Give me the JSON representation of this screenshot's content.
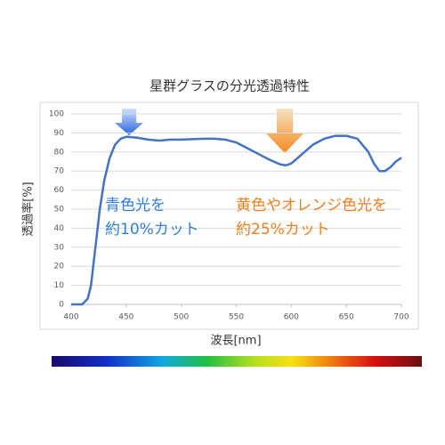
{
  "chart_data": {
    "type": "line",
    "title": "星群グラスの分光透過特性",
    "x_label": "波長[nm]",
    "y_label": "透過率[%]",
    "x": [
      400,
      410,
      415,
      418,
      420,
      423,
      426,
      430,
      435,
      440,
      445,
      450,
      460,
      470,
      480,
      490,
      500,
      520,
      530,
      540,
      550,
      560,
      570,
      580,
      590,
      595,
      600,
      610,
      620,
      630,
      640,
      650,
      660,
      670,
      675,
      680,
      685,
      690,
      695,
      700
    ],
    "values": [
      0,
      0,
      3,
      10,
      20,
      35,
      50,
      65,
      77,
      84,
      87,
      88,
      87.5,
      86.5,
      86,
      86.5,
      86.5,
      87,
      87,
      86.5,
      85,
      82,
      79,
      76,
      73.5,
      73,
      74,
      79,
      84,
      87,
      88.5,
      88.5,
      87,
      80,
      74,
      70,
      70,
      72,
      75,
      77
    ],
    "color": "#4472c4",
    "xlim": [
      400,
      700
    ],
    "xticks": [
      400,
      450,
      500,
      550,
      600,
      650,
      700
    ],
    "ylim": [
      0,
      100
    ],
    "yticks": [
      0,
      10,
      20,
      30,
      40,
      50,
      60,
      70,
      80,
      90,
      100
    ],
    "grid": true,
    "annotations": [
      {
        "lines": [
          "青色光を",
          "約10%カット"
        ],
        "color": "#2f7fd8"
      },
      {
        "lines": [
          "黄色やオレンジ色光を",
          "約25%カット"
        ],
        "color": "#f07f1e"
      }
    ]
  }
}
